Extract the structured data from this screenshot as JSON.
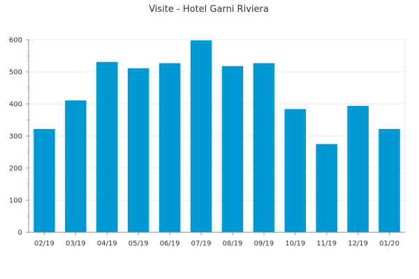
{
  "colors": {
    "bar": "#0099d6",
    "axis": "#888888",
    "grid": "#e6e6e6",
    "text": "#333333"
  },
  "chart_data": {
    "type": "bar",
    "title": "Visite - Hotel Garni Riviera",
    "xlabel": "",
    "ylabel": "",
    "categories": [
      "02/19",
      "03/19",
      "04/19",
      "05/19",
      "06/19",
      "07/19",
      "08/19",
      "09/19",
      "10/19",
      "11/19",
      "12/19",
      "01/20"
    ],
    "values": [
      322,
      411,
      531,
      511,
      527,
      598,
      518,
      527,
      384,
      275,
      394,
      322
    ],
    "ylim": [
      0,
      600
    ],
    "yticks": [
      0,
      100,
      200,
      300,
      400,
      500,
      600
    ],
    "grid": true,
    "legend": "none"
  }
}
